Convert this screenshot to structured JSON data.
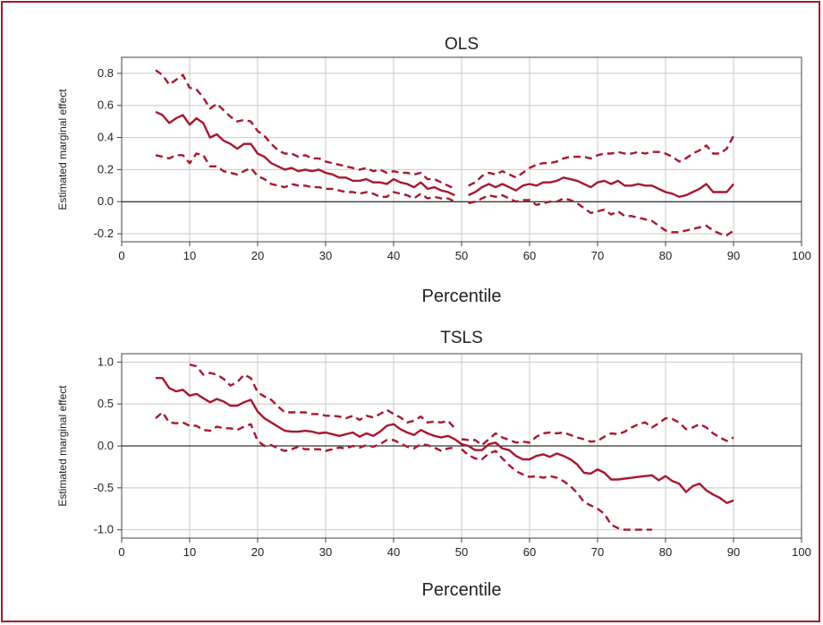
{
  "colors": {
    "border": "#a6192e",
    "series": "#a6192e",
    "grid": "#c8c8c8",
    "zero_line": "#000000"
  },
  "chart_data": [
    {
      "type": "line",
      "title": "OLS",
      "xlabel": "Percentile",
      "ylabel": "Estimated marginal effect",
      "xlim": [
        0,
        100
      ],
      "ylim": [
        -0.25,
        0.9
      ],
      "xticks": [
        0,
        10,
        20,
        30,
        40,
        50,
        60,
        70,
        80,
        90,
        100
      ],
      "yticks": [
        -0.2,
        0.0,
        0.2,
        0.4,
        0.6,
        0.8
      ],
      "ytick_labels": [
        "-0.2",
        "0.0",
        "0.2",
        "0.4",
        "0.6",
        "0.8"
      ],
      "grid": true,
      "x_left": [
        5,
        6,
        7,
        8,
        9,
        10,
        11,
        12,
        13,
        14,
        15,
        16,
        17,
        18,
        19,
        20,
        21,
        22,
        23,
        24,
        25,
        26,
        27,
        28,
        29,
        30,
        31,
        32,
        33,
        34,
        35,
        36,
        37,
        38,
        39,
        40,
        41,
        42,
        43,
        44,
        45,
        46,
        47,
        48,
        49
      ],
      "x_right": [
        51,
        52,
        53,
        54,
        55,
        56,
        57,
        58,
        59,
        60,
        61,
        62,
        63,
        64,
        65,
        66,
        67,
        68,
        69,
        70,
        71,
        72,
        73,
        74,
        75,
        76,
        77,
        78,
        79,
        80,
        81,
        82,
        83,
        84,
        85,
        86,
        87,
        88,
        89,
        90
      ],
      "series": [
        {
          "role": "estimate",
          "left": [
            0.56,
            0.54,
            0.49,
            0.52,
            0.54,
            0.48,
            0.52,
            0.49,
            0.4,
            0.42,
            0.38,
            0.36,
            0.33,
            0.36,
            0.36,
            0.3,
            0.28,
            0.24,
            0.22,
            0.2,
            0.21,
            0.19,
            0.2,
            0.19,
            0.2,
            0.18,
            0.17,
            0.15,
            0.15,
            0.13,
            0.13,
            0.14,
            0.12,
            0.12,
            0.11,
            0.14,
            0.12,
            0.11,
            0.09,
            0.12,
            0.08,
            0.09,
            0.07,
            0.06,
            0.04
          ],
          "right": [
            0.04,
            0.06,
            0.09,
            0.11,
            0.09,
            0.11,
            0.09,
            0.07,
            0.1,
            0.11,
            0.1,
            0.12,
            0.12,
            0.13,
            0.15,
            0.14,
            0.13,
            0.11,
            0.09,
            0.12,
            0.13,
            0.11,
            0.13,
            0.1,
            0.1,
            0.11,
            0.1,
            0.1,
            0.08,
            0.06,
            0.05,
            0.03,
            0.04,
            0.06,
            0.08,
            0.11,
            0.06,
            0.06,
            0.06,
            0.11
          ]
        },
        {
          "role": "upper",
          "left": [
            0.82,
            0.79,
            0.73,
            0.76,
            0.79,
            0.71,
            0.7,
            0.65,
            0.58,
            0.61,
            0.57,
            0.53,
            0.5,
            0.51,
            0.5,
            0.44,
            0.41,
            0.36,
            0.32,
            0.3,
            0.3,
            0.28,
            0.29,
            0.27,
            0.27,
            0.25,
            0.24,
            0.23,
            0.22,
            0.21,
            0.2,
            0.21,
            0.19,
            0.2,
            0.18,
            0.19,
            0.18,
            0.18,
            0.17,
            0.18,
            0.14,
            0.14,
            0.12,
            0.1,
            0.08
          ],
          "right": [
            0.1,
            0.12,
            0.16,
            0.18,
            0.17,
            0.19,
            0.17,
            0.15,
            0.18,
            0.21,
            0.23,
            0.24,
            0.24,
            0.25,
            0.27,
            0.28,
            0.28,
            0.28,
            0.27,
            0.29,
            0.3,
            0.3,
            0.31,
            0.3,
            0.3,
            0.31,
            0.3,
            0.31,
            0.31,
            0.3,
            0.28,
            0.25,
            0.27,
            0.3,
            0.32,
            0.35,
            0.3,
            0.3,
            0.33,
            0.41
          ]
        },
        {
          "role": "lower",
          "left": [
            0.29,
            0.28,
            0.27,
            0.29,
            0.29,
            0.24,
            0.3,
            0.29,
            0.22,
            0.22,
            0.19,
            0.18,
            0.17,
            0.19,
            0.21,
            0.16,
            0.14,
            0.11,
            0.1,
            0.09,
            0.11,
            0.1,
            0.1,
            0.09,
            0.09,
            0.08,
            0.08,
            0.07,
            0.06,
            0.06,
            0.05,
            0.06,
            0.05,
            0.03,
            0.03,
            0.06,
            0.05,
            0.04,
            0.02,
            0.05,
            0.02,
            0.03,
            0.02,
            0.02,
            0.0
          ],
          "right": [
            -0.01,
            0.0,
            0.02,
            0.04,
            0.03,
            0.04,
            0.02,
            0.0,
            0.01,
            0.01,
            -0.02,
            -0.01,
            0.0,
            0.0,
            0.02,
            0.01,
            -0.01,
            -0.04,
            -0.07,
            -0.06,
            -0.05,
            -0.08,
            -0.06,
            -0.09,
            -0.09,
            -0.1,
            -0.11,
            -0.12,
            -0.15,
            -0.18,
            -0.19,
            -0.19,
            -0.18,
            -0.17,
            -0.16,
            -0.15,
            -0.18,
            -0.2,
            -0.21,
            -0.18
          ]
        }
      ]
    },
    {
      "type": "line",
      "title": "TSLS",
      "xlabel": "Percentile",
      "ylabel": "Estimated marginal effect",
      "xlim": [
        0,
        100
      ],
      "ylim": [
        -1.1,
        1.1
      ],
      "xticks": [
        0,
        10,
        20,
        30,
        40,
        50,
        60,
        70,
        80,
        90,
        100
      ],
      "yticks": [
        -1.0,
        -0.5,
        0.0,
        0.5,
        1.0
      ],
      "ytick_labels": [
        "-1.0",
        "-0.5",
        "0.0",
        "0.5",
        "1.0"
      ],
      "grid": true,
      "series": [
        {
          "role": "estimate",
          "x": [
            5,
            6,
            7,
            8,
            9,
            10,
            11,
            12,
            13,
            14,
            15,
            16,
            17,
            18,
            19,
            20,
            21,
            22,
            23,
            24,
            25,
            26,
            27,
            28,
            29,
            30,
            31,
            32,
            33,
            34,
            35,
            36,
            37,
            38,
            39,
            40,
            41,
            42,
            43,
            44,
            45,
            46,
            47,
            48,
            49,
            50,
            51,
            52,
            53,
            54,
            55,
            56,
            57,
            58,
            59,
            60,
            61,
            62,
            63,
            64,
            65,
            66,
            67,
            68,
            69,
            70,
            71,
            72,
            73,
            74,
            75,
            76,
            77,
            78,
            79,
            80,
            81,
            82,
            83,
            84,
            85,
            86,
            87,
            88,
            89,
            90
          ],
          "y": [
            0.81,
            0.81,
            0.69,
            0.65,
            0.67,
            0.6,
            0.62,
            0.57,
            0.52,
            0.56,
            0.53,
            0.48,
            0.48,
            0.52,
            0.55,
            0.41,
            0.33,
            0.28,
            0.23,
            0.18,
            0.17,
            0.17,
            0.18,
            0.17,
            0.15,
            0.16,
            0.14,
            0.12,
            0.14,
            0.16,
            0.11,
            0.15,
            0.12,
            0.17,
            0.24,
            0.26,
            0.2,
            0.16,
            0.13,
            0.19,
            0.15,
            0.12,
            0.1,
            0.12,
            0.08,
            0.02,
            0.0,
            -0.05,
            -0.05,
            0.02,
            0.04,
            -0.03,
            -0.05,
            -0.12,
            -0.16,
            -0.16,
            -0.12,
            -0.1,
            -0.13,
            -0.09,
            -0.12,
            -0.16,
            -0.22,
            -0.32,
            -0.33,
            -0.28,
            -0.32,
            -0.4,
            -0.4,
            -0.39,
            -0.38,
            -0.37,
            -0.36,
            -0.35,
            -0.41,
            -0.36,
            -0.42,
            -0.45,
            -0.55,
            -0.48,
            -0.45,
            -0.53,
            -0.58,
            -0.62,
            -0.68,
            -0.65
          ]
        },
        {
          "role": "upper",
          "x": [
            10,
            11,
            12,
            13,
            14,
            15,
            16,
            17,
            18,
            19,
            20,
            21,
            22,
            23,
            24,
            25,
            26,
            27,
            28,
            29,
            30,
            31,
            32,
            33,
            34,
            35,
            36,
            37,
            38,
            39,
            40,
            41,
            42,
            43,
            44,
            45,
            46,
            47,
            48,
            49,
            null,
            50,
            51,
            52,
            53,
            54,
            55,
            56,
            57,
            58,
            59,
            60,
            61,
            62,
            63,
            64,
            65,
            66,
            67,
            68,
            69,
            70,
            71,
            72,
            73,
            74,
            75,
            76,
            77,
            78,
            79,
            80,
            81,
            82,
            83,
            84,
            85,
            86,
            87,
            88,
            89,
            90
          ],
          "y": [
            0.97,
            0.95,
            0.85,
            0.87,
            0.85,
            0.8,
            0.72,
            0.76,
            0.85,
            0.81,
            0.64,
            0.59,
            0.55,
            0.47,
            0.4,
            0.4,
            0.4,
            0.4,
            0.38,
            0.38,
            0.36,
            0.36,
            0.35,
            0.33,
            0.36,
            0.31,
            0.36,
            0.34,
            0.38,
            0.43,
            0.38,
            0.34,
            0.28,
            0.3,
            0.35,
            0.28,
            0.29,
            0.28,
            0.3,
            0.21,
            null,
            0.08,
            0.07,
            0.07,
            0.01,
            0.08,
            0.15,
            0.1,
            0.07,
            0.04,
            0.05,
            0.04,
            0.11,
            0.15,
            0.16,
            0.15,
            0.16,
            0.13,
            0.1,
            0.08,
            0.05,
            0.06,
            0.11,
            0.15,
            0.14,
            0.17,
            0.22,
            0.26,
            0.28,
            0.22,
            0.27,
            0.33,
            0.32,
            0.28,
            0.2,
            0.22,
            0.26,
            0.22,
            0.15,
            0.1,
            0.06,
            0.1
          ]
        },
        {
          "role": "lower",
          "x": [
            5,
            6,
            7,
            8,
            9,
            10,
            11,
            12,
            13,
            14,
            15,
            16,
            17,
            18,
            19,
            20,
            21,
            22,
            23,
            24,
            25,
            26,
            27,
            28,
            29,
            30,
            31,
            32,
            33,
            34,
            35,
            36,
            37,
            38,
            39,
            40,
            41,
            42,
            43,
            44,
            45,
            46,
            47,
            48,
            49,
            null,
            50,
            51,
            52,
            53,
            54,
            55,
            56,
            57,
            58,
            59,
            60,
            61,
            62,
            63,
            64,
            65,
            66,
            67,
            68,
            69,
            70,
            71,
            72,
            73,
            74,
            75,
            76,
            77,
            78
          ],
          "y": [
            0.33,
            0.4,
            0.28,
            0.27,
            0.28,
            0.24,
            0.24,
            0.19,
            0.18,
            0.23,
            0.21,
            0.21,
            0.19,
            0.23,
            0.26,
            0.06,
            0.0,
            0.01,
            -0.03,
            -0.06,
            -0.04,
            -0.01,
            -0.04,
            -0.04,
            -0.04,
            -0.06,
            -0.04,
            -0.02,
            -0.03,
            0.0,
            -0.02,
            0.01,
            -0.01,
            0.02,
            0.07,
            0.07,
            0.03,
            -0.01,
            -0.03,
            0.02,
            0.01,
            -0.02,
            -0.06,
            -0.03,
            -0.02,
            null,
            -0.04,
            -0.11,
            -0.15,
            -0.16,
            -0.09,
            -0.06,
            -0.15,
            -0.23,
            -0.3,
            -0.34,
            -0.37,
            -0.36,
            -0.38,
            -0.36,
            -0.38,
            -0.42,
            -0.48,
            -0.56,
            -0.67,
            -0.71,
            -0.75,
            -0.81,
            -0.94,
            -0.98,
            -1.0,
            -1.0,
            -1.0,
            -1.0,
            -1.0
          ]
        }
      ]
    }
  ]
}
